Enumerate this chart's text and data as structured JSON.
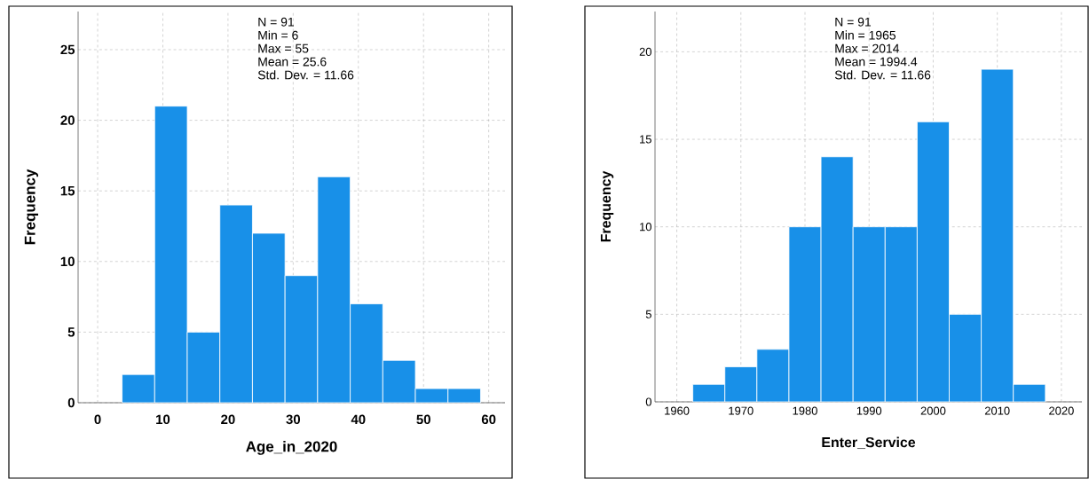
{
  "chart_data": [
    {
      "type": "histogram",
      "xlabel": "Age_in_2020",
      "ylabel": "Frequency",
      "bins": [
        3.75,
        8.75,
        13.75,
        18.75,
        23.75,
        28.75,
        33.75,
        38.75,
        43.75,
        48.75,
        53.75,
        58.75
      ],
      "values": [
        2,
        21,
        5,
        14,
        12,
        9,
        16,
        7,
        3,
        1,
        1
      ],
      "color": "#1890e8",
      "xlim": [
        -3,
        62.5
      ],
      "ylim": [
        0,
        27.7
      ],
      "xticks": [
        0,
        10,
        20,
        30,
        40,
        50,
        60
      ],
      "yticks": [
        0,
        5,
        10,
        15,
        20,
        25
      ],
      "grid": true,
      "annotations": [
        "N = 91",
        "Min = 6",
        "Max = 55",
        "Mean = 25.6",
        "Std. Dev. = 11.66"
      ]
    },
    {
      "type": "histogram",
      "xlabel": "Enter_Service",
      "ylabel": "Frequency",
      "bins": [
        1962.5,
        1967.5,
        1972.5,
        1977.5,
        1982.5,
        1987.5,
        1992.5,
        1997.5,
        2002.5,
        2007.5,
        2012.5,
        2017.5
      ],
      "values": [
        1,
        2,
        3,
        10,
        14,
        10,
        10,
        16,
        5,
        19,
        1
      ],
      "color": "#1890e8",
      "xlim": [
        1956.6,
        2023.2
      ],
      "ylim": [
        0,
        22.3
      ],
      "xticks": [
        1960,
        1970,
        1980,
        1990,
        2000,
        2010,
        2020
      ],
      "yticks": [
        0,
        5,
        10,
        15,
        20
      ],
      "grid": true,
      "annotations": [
        "N = 91",
        "Min = 1965",
        "Max = 2014",
        "Mean = 1994.4",
        "Std. Dev. = 11.66"
      ]
    }
  ]
}
